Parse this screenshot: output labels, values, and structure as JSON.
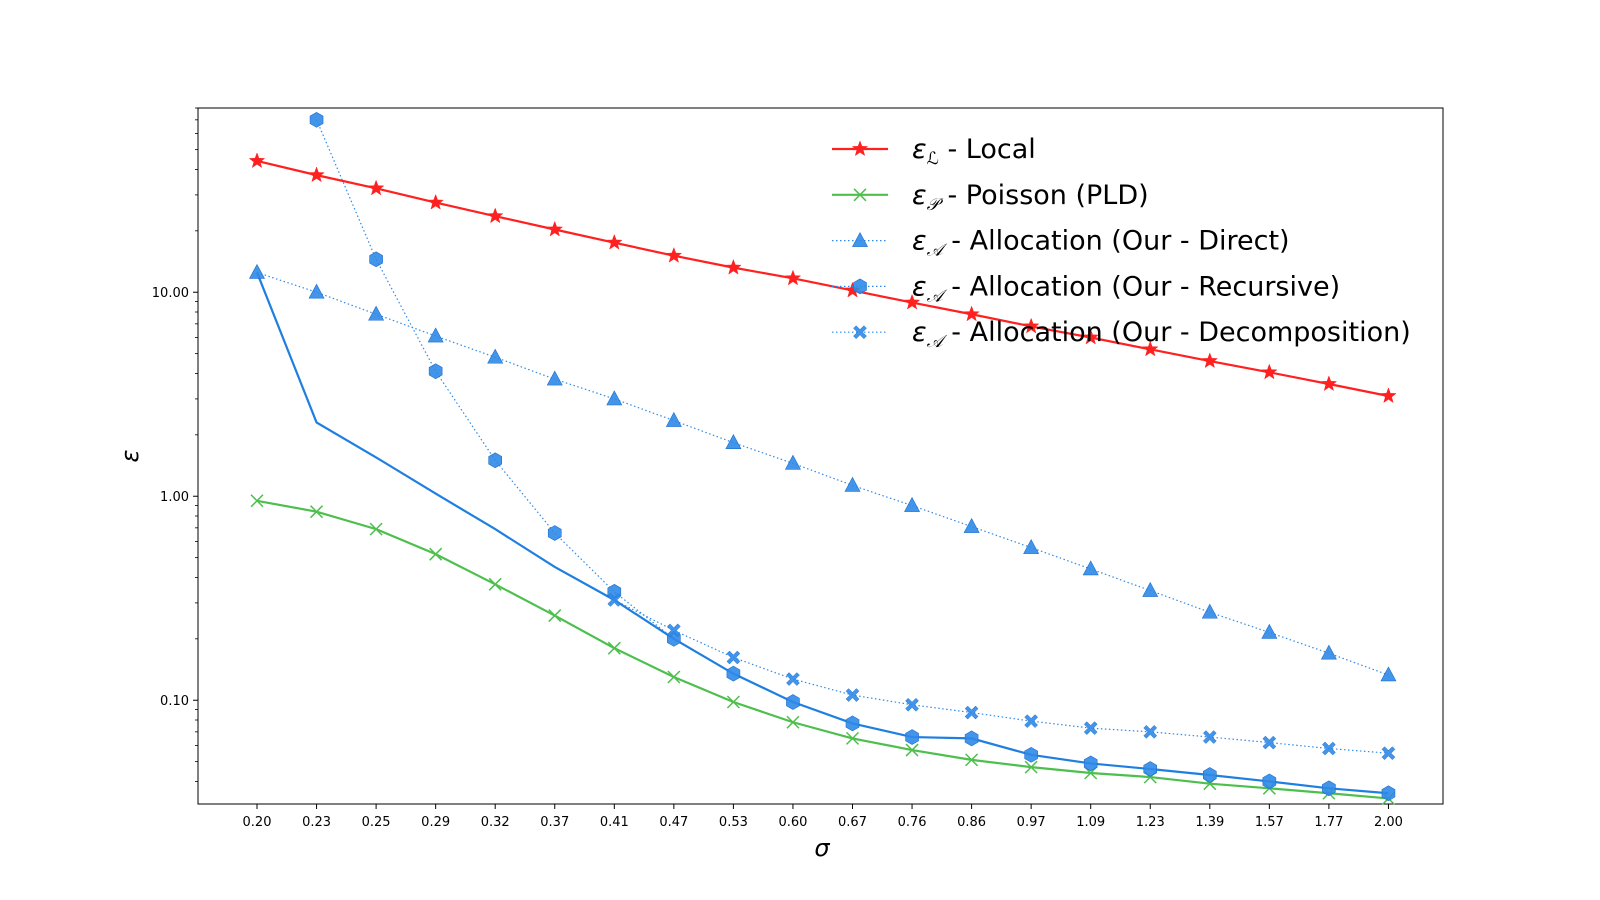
{
  "chart_data": {
    "type": "line",
    "title": "",
    "xlabel": "σ",
    "ylabel": "ε",
    "yscale": "log",
    "ylim": [
      0.031,
      80
    ],
    "grid": false,
    "legend_position": "top-right",
    "categories": [
      "0.20",
      "0.23",
      "0.25",
      "0.29",
      "0.32",
      "0.37",
      "0.41",
      "0.47",
      "0.53",
      "0.60",
      "0.67",
      "0.76",
      "0.86",
      "0.97",
      "1.09",
      "1.23",
      "1.39",
      "1.57",
      "1.77",
      "2.00"
    ],
    "y_ticks": [
      {
        "value": 0.1,
        "label": "0.10"
      },
      {
        "value": 1,
        "label": "1.00"
      },
      {
        "value": 10,
        "label": "10.00"
      }
    ],
    "series": [
      {
        "id": "local",
        "symbol": "ε",
        "subscript": "ℒ",
        "label": " - Local",
        "color": "#ff2020",
        "marker": "star",
        "line": "solid",
        "values": [
          44,
          37.5,
          32.3,
          27.5,
          23.6,
          20.3,
          17.5,
          15.1,
          13.2,
          11.7,
          10.2,
          8.9,
          7.8,
          6.8,
          6.0,
          5.25,
          4.6,
          4.05,
          3.55,
          3.1
        ]
      },
      {
        "id": "poisson",
        "symbol": "ε",
        "subscript": "𝒫",
        "label": " - Poisson (PLD)",
        "color": "#4dbf4d",
        "marker": "x",
        "line": "solid",
        "values": [
          0.95,
          0.84,
          0.69,
          0.52,
          0.37,
          0.26,
          0.18,
          0.13,
          0.098,
          0.078,
          0.065,
          0.057,
          0.051,
          0.047,
          0.044,
          0.042,
          0.039,
          0.037,
          0.035,
          0.033
        ]
      },
      {
        "id": "direct",
        "symbol": "ε",
        "subscript": "𝒜",
        "label": " - Allocation (Our - Direct)",
        "color": "#2f8ae8",
        "marker": "triangle",
        "line": "dotted",
        "values": [
          12.5,
          10.0,
          7.8,
          6.1,
          4.8,
          3.75,
          3.0,
          2.35,
          1.83,
          1.45,
          1.13,
          0.9,
          0.71,
          0.56,
          0.44,
          0.345,
          0.27,
          0.215,
          0.17,
          0.133
        ]
      },
      {
        "id": "recursive",
        "symbol": "ε",
        "subscript": "𝒜",
        "label": " - Allocation (Our - Recursive)",
        "color": "#2f8ae8",
        "marker": "hexagon",
        "line": "dotted",
        "values": [
          null,
          70,
          14.5,
          4.1,
          1.5,
          0.66,
          0.34,
          0.2,
          0.135,
          0.098,
          0.077,
          0.066,
          0.065,
          0.054,
          0.049,
          0.046,
          0.043,
          0.04,
          0.037,
          0.035
        ]
      },
      {
        "id": "decomposition",
        "symbol": "ε",
        "subscript": "𝒜",
        "label": " - Allocation (Our - Decomposition)",
        "color": "#2f8ae8",
        "marker": "xfilled",
        "line": "dotted",
        "values": [
          null,
          null,
          null,
          null,
          null,
          null,
          0.31,
          0.22,
          0.162,
          0.127,
          0.106,
          0.095,
          0.087,
          0.079,
          0.073,
          0.07,
          0.066,
          0.062,
          0.058,
          0.055
        ]
      },
      {
        "id": "min",
        "label": "",
        "color": "#1f7fe0",
        "marker": "none",
        "line": "solid",
        "in_legend": false,
        "values": [
          12.5,
          2.3,
          1.55,
          1.03,
          0.69,
          0.45,
          0.31,
          0.2,
          0.135,
          0.098,
          0.077,
          0.066,
          0.065,
          0.054,
          0.049,
          0.046,
          0.043,
          0.04,
          0.037,
          0.035
        ]
      }
    ]
  }
}
